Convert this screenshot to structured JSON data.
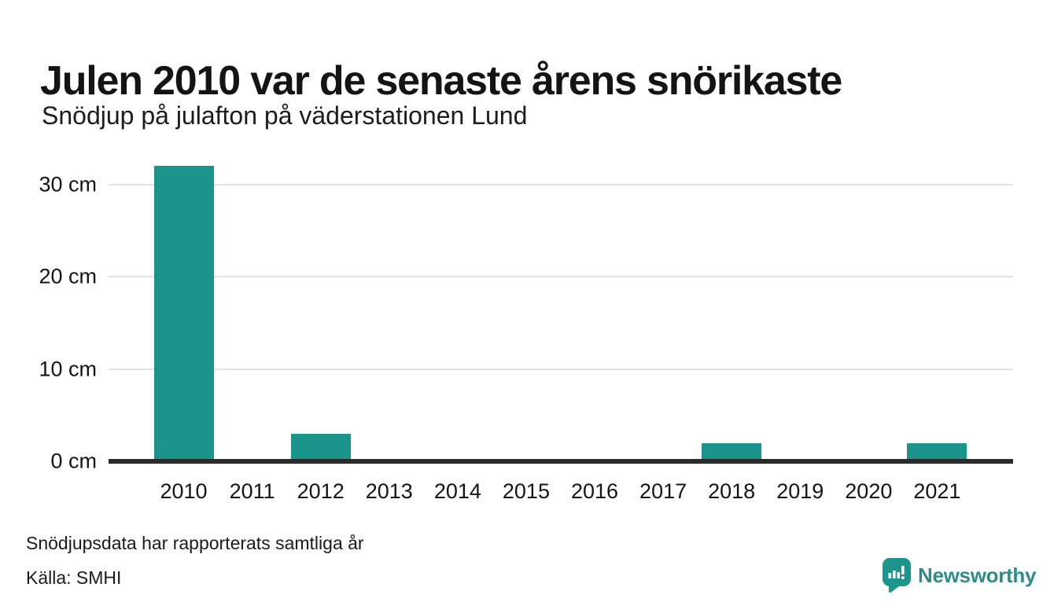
{
  "header": {
    "title": "Julen 2010 var de senaste årens snörikaste",
    "subtitle": "Snödjup på julafton på väderstationen Lund"
  },
  "chart_data": {
    "type": "bar",
    "title": "Julen 2010 var de senaste årens snörikaste",
    "subtitle": "Snödjup på julafton på väderstationen Lund",
    "categories": [
      "2010",
      "2011",
      "2012",
      "2013",
      "2014",
      "2015",
      "2016",
      "2017",
      "2018",
      "2019",
      "2020",
      "2021"
    ],
    "values": [
      32,
      0,
      3,
      0,
      0,
      0,
      0,
      0,
      2,
      0,
      0,
      2
    ],
    "unit": "cm",
    "xlabel": "",
    "ylabel": "",
    "yticks": [
      0,
      10,
      20,
      30
    ],
    "ytick_labels": [
      "0 cm",
      "10 cm",
      "20 cm",
      "30 cm"
    ],
    "ylim": [
      0,
      33.8
    ],
    "grid": true,
    "legend_position": "none",
    "bar_color": "#1a948a",
    "gridline_color": "#e3e3e3",
    "axis_color": "#2b2b2b"
  },
  "footer": {
    "note": "Snödjupsdata har rapporterats samtliga år",
    "source": "Källa: SMHI"
  },
  "branding": {
    "logo_text": "Newsworthy",
    "logo_icon": "newsworthy-speech-bubble-bar-chart-icon",
    "logo_text_color": "#2e8c88",
    "logo_icon_color": "#1d948c"
  }
}
